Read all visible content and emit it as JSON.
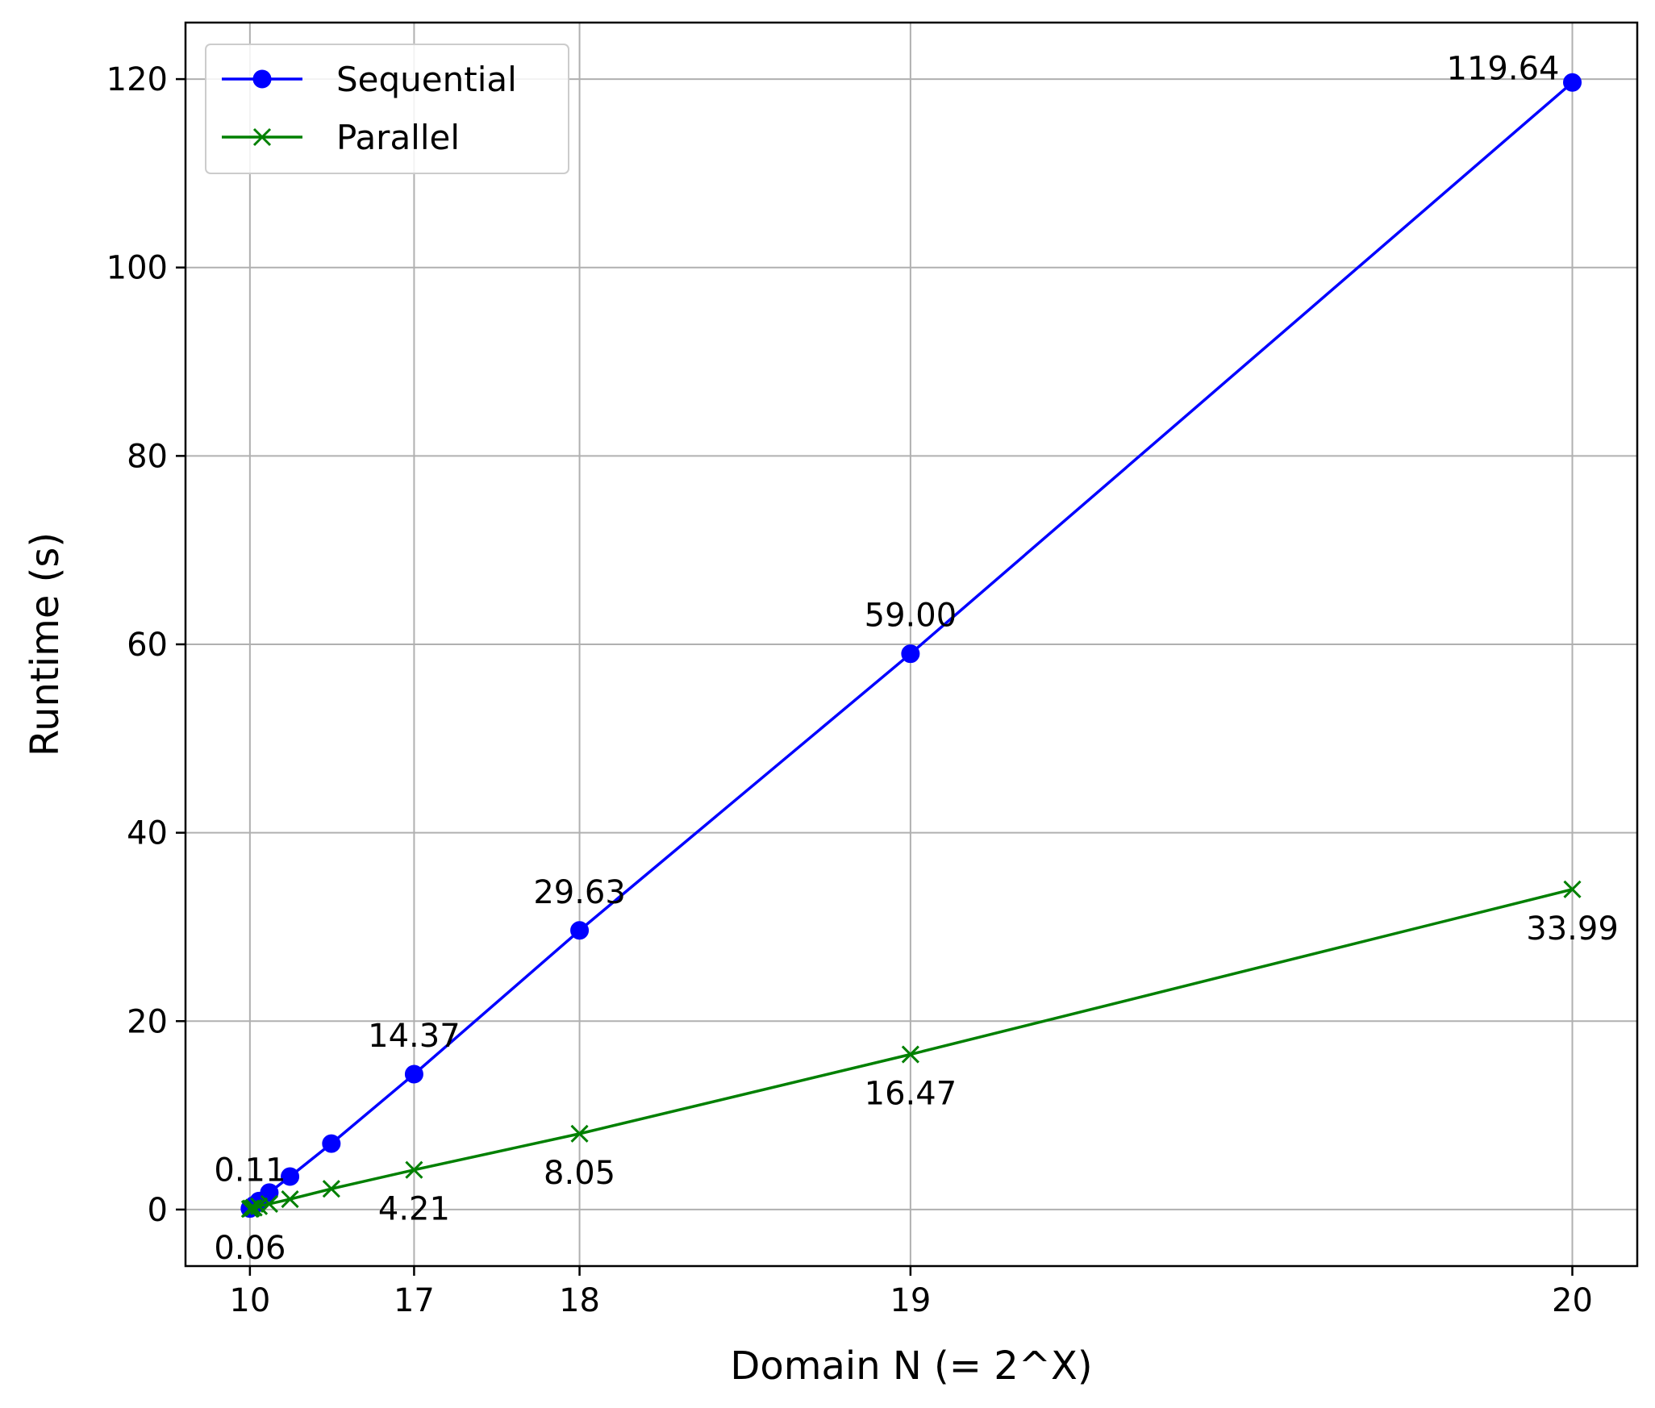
{
  "chart_data": {
    "type": "line",
    "xlabel": "Domain N (= 2^X)",
    "ylabel": "Runtime (s)",
    "x_ticks": [
      {
        "value": 1024,
        "label": "10"
      },
      {
        "value": 131072,
        "label": "17"
      },
      {
        "value": 262144,
        "label": "18"
      },
      {
        "value": 524288,
        "label": "19"
      },
      {
        "value": 1048576,
        "label": "20"
      }
    ],
    "y_ticks": [
      0,
      20,
      40,
      60,
      80,
      100,
      120
    ],
    "xlim": [
      -50000,
      1100000
    ],
    "ylim": [
      -6,
      126
    ],
    "grid": true,
    "legend_position": "top-left",
    "series": [
      {
        "name": "Sequential",
        "color": "#0000ff",
        "marker": "circle",
        "x": [
          1024,
          2048,
          4096,
          8192,
          16384,
          32768,
          65536,
          131072,
          262144,
          524288,
          1048576
        ],
        "y": [
          0.11,
          0.22,
          0.45,
          0.9,
          1.8,
          3.5,
          7.0,
          14.37,
          29.63,
          59.0,
          119.64
        ],
        "labels": [
          {
            "index": 0,
            "text": "0.11",
            "pos": "above"
          },
          {
            "index": 7,
            "text": "14.37",
            "pos": "above"
          },
          {
            "index": 8,
            "text": "29.63",
            "pos": "above"
          },
          {
            "index": 9,
            "text": "59.00",
            "pos": "above"
          },
          {
            "index": 10,
            "text": "119.64",
            "pos": "left"
          }
        ]
      },
      {
        "name": "Parallel",
        "color": "#008000",
        "marker": "x",
        "x": [
          1024,
          2048,
          4096,
          8192,
          16384,
          32768,
          65536,
          131072,
          262144,
          524288,
          1048576
        ],
        "y": [
          0.06,
          0.12,
          0.2,
          0.35,
          0.6,
          1.1,
          2.2,
          4.21,
          8.05,
          16.47,
          33.99
        ],
        "labels": [
          {
            "index": 0,
            "text": "0.06",
            "pos": "below"
          },
          {
            "index": 7,
            "text": "4.21",
            "pos": "below"
          },
          {
            "index": 8,
            "text": "8.05",
            "pos": "below"
          },
          {
            "index": 9,
            "text": "16.47",
            "pos": "below"
          },
          {
            "index": 10,
            "text": "33.99",
            "pos": "below"
          }
        ]
      }
    ]
  }
}
